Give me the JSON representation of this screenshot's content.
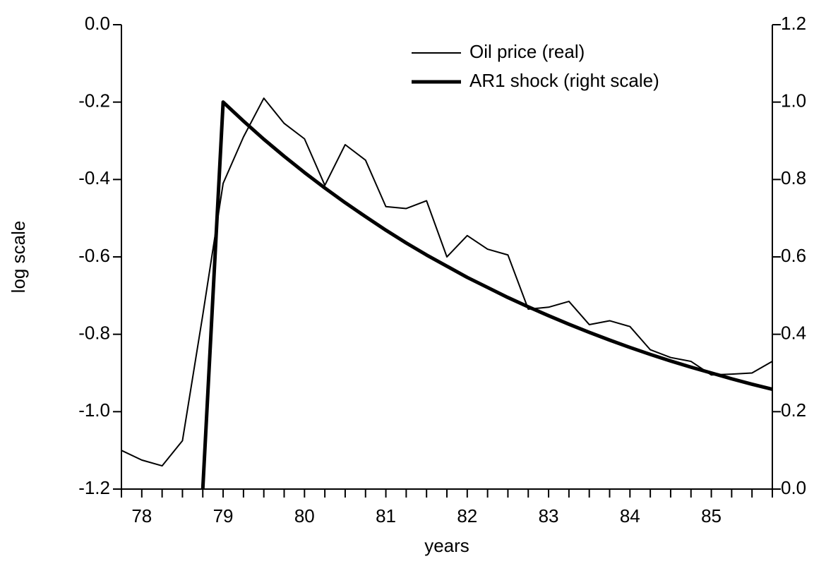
{
  "chart_data": {
    "type": "line",
    "y_label": "log scale",
    "x_label": "years",
    "categories": [
      null,
      "78",
      null,
      null,
      null,
      "79",
      null,
      null,
      null,
      "80",
      null,
      null,
      null,
      "81",
      null,
      null,
      null,
      "82",
      null,
      null,
      null,
      "83",
      null,
      null,
      null,
      "84",
      null,
      null,
      null,
      "85",
      null,
      null,
      null
    ],
    "series": [
      {
        "name": "Oil price (real)",
        "color": "#000000",
        "width": "thin",
        "values": [
          -1.1,
          -1.125,
          -1.14,
          -1.075,
          -0.75,
          -0.41,
          -0.29,
          -0.19,
          -0.255,
          -0.295,
          -0.415,
          -0.31,
          -0.35,
          -0.47,
          -0.475,
          -0.455,
          -0.6,
          -0.545,
          -0.58,
          -0.595,
          -0.735,
          -0.73,
          -0.715,
          -0.775,
          -0.765,
          -0.78,
          -0.84,
          -0.86,
          -0.87,
          -0.905,
          -0.903,
          -0.9,
          -0.87
        ]
      },
      {
        "name": "AR1 shock (right scale)",
        "color": "#000000",
        "width": "thick",
        "axis": "y2",
        "values": [
          null,
          null,
          null,
          null,
          0.0,
          1.0,
          0.951,
          0.904,
          0.86,
          0.818,
          0.778,
          0.74,
          0.704,
          0.669,
          0.636,
          0.605,
          0.576,
          0.547,
          0.521,
          0.495,
          0.471,
          0.448,
          0.426,
          0.405,
          0.385,
          0.366,
          0.348,
          0.331,
          0.315,
          0.3,
          0.285,
          0.271,
          0.258
        ]
      }
    ],
    "ylim": [
      -1.2,
      0.0
    ],
    "yticks": [
      {
        "value": -1.2,
        "label": "-1.2"
      },
      {
        "value": -1.0,
        "label": "-1.0"
      },
      {
        "value": -0.8,
        "label": "-0.8"
      },
      {
        "value": -0.6,
        "label": "-0.6"
      },
      {
        "value": -0.4,
        "label": "-0.4"
      },
      {
        "value": -0.2,
        "label": "-0.2"
      },
      {
        "value": 0.0,
        "label": "0.0"
      }
    ],
    "y2lim": [
      0.0,
      1.2
    ],
    "y2ticks": [
      {
        "value": 0.0,
        "label": "0.0"
      },
      0.2,
      0.4,
      0.6,
      0.8,
      {
        "value": 1.0,
        "label": "1.0"
      },
      1.2
    ],
    "legend": "top-right",
    "grid": false
  }
}
